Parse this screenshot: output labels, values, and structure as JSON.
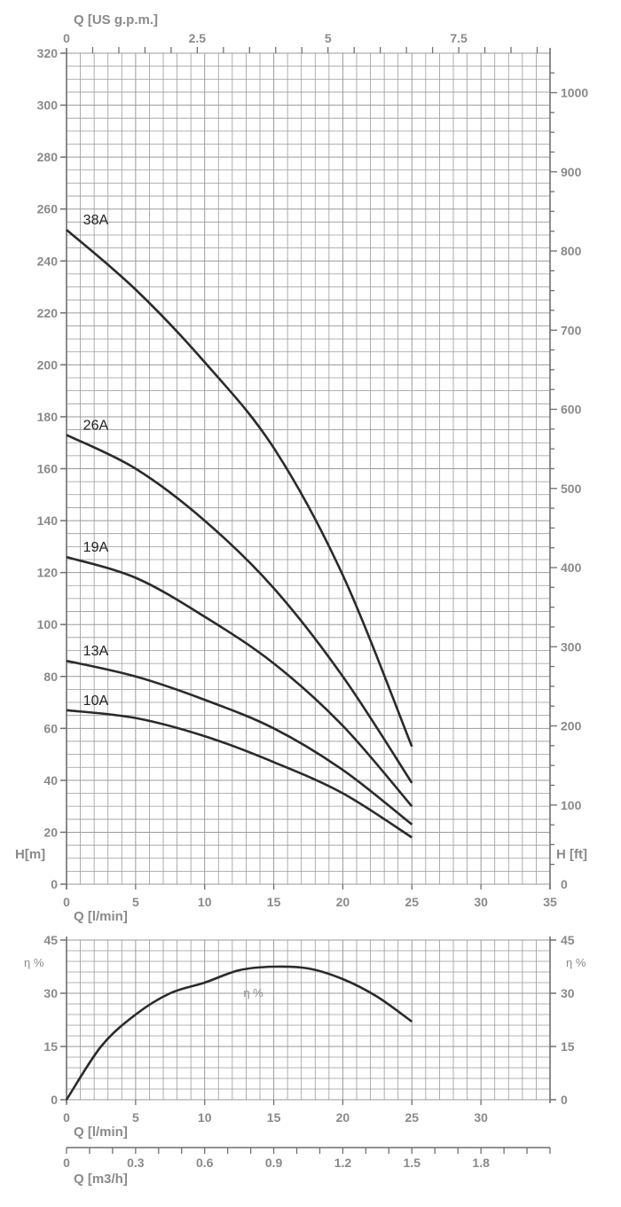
{
  "chart_data": [
    {
      "type": "line",
      "title": "",
      "x_axis_bottom": {
        "label": "Q [l/min]",
        "ticks": [
          0,
          5,
          10,
          15,
          20,
          25,
          30,
          35
        ],
        "range": [
          0,
          35
        ]
      },
      "x_axis_top": {
        "label": "Q [US g.p.m.]",
        "ticks": [
          "0",
          "2.5",
          "5",
          "7.5"
        ]
      },
      "y_axis_left": {
        "label": "H[m]",
        "ticks": [
          0,
          20,
          40,
          60,
          80,
          100,
          120,
          140,
          160,
          180,
          200,
          220,
          240,
          260,
          280,
          300,
          320
        ],
        "range": [
          0,
          320
        ]
      },
      "y_axis_right": {
        "label": "H [ft]",
        "ticks": [
          0,
          100,
          200,
          300,
          400,
          500,
          600,
          700,
          800,
          900,
          1000
        ]
      },
      "grid": true,
      "line_color": "#2b2b2b",
      "grid_color": "#9a9a9a",
      "series": [
        {
          "name": "38A",
          "x": [
            0,
            5,
            10,
            15,
            20,
            25
          ],
          "values": [
            252,
            229,
            201,
            168,
            119,
            53
          ]
        },
        {
          "name": "26A",
          "x": [
            0,
            5,
            10,
            15,
            20,
            25
          ],
          "values": [
            173,
            160,
            140,
            114,
            80,
            39
          ]
        },
        {
          "name": "19A",
          "x": [
            0,
            5,
            10,
            15,
            20,
            25
          ],
          "values": [
            126,
            118,
            103,
            85,
            61,
            30
          ]
        },
        {
          "name": "13A",
          "x": [
            0,
            5,
            10,
            15,
            20,
            25
          ],
          "values": [
            86,
            80,
            71,
            60,
            44,
            23
          ]
        },
        {
          "name": "10A",
          "x": [
            0,
            5,
            10,
            15,
            20,
            25
          ],
          "values": [
            67,
            64,
            57,
            47,
            35,
            18
          ]
        }
      ]
    },
    {
      "type": "line",
      "title": "",
      "x_axis_bottom": {
        "label": "Q [l/min]",
        "ticks": [
          0,
          5,
          10,
          15,
          20,
          25,
          30
        ],
        "range": [
          0,
          35
        ]
      },
      "x_axis_m3h": {
        "label": "Q [m3/h]",
        "ticks": [
          "0",
          "0.3",
          "0.6",
          "0.9",
          "1.2",
          "1.5",
          "1.8"
        ]
      },
      "y_axis_left": {
        "label": "η %",
        "ticks": [
          0,
          15,
          30,
          45
        ],
        "range": [
          0,
          45
        ]
      },
      "y_axis_right": {
        "label": "η %",
        "ticks": [
          0,
          15,
          30,
          45
        ]
      },
      "grid": true,
      "series": [
        {
          "name": "η %",
          "x": [
            0,
            2.5,
            5,
            7.5,
            10,
            12.5,
            15,
            17.5,
            20,
            22.5,
            25
          ],
          "values": [
            0,
            15,
            24,
            30,
            33,
            36.5,
            37.5,
            37,
            34,
            29,
            22
          ]
        }
      ]
    }
  ]
}
